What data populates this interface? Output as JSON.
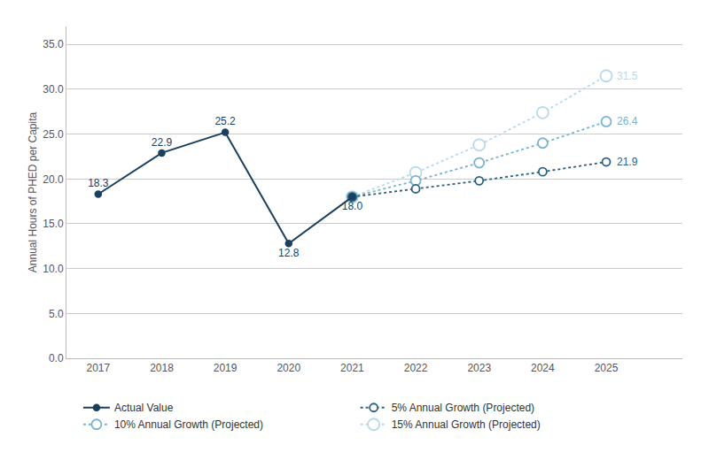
{
  "chart_data": {
    "type": "line",
    "ylabel": "Annual Hours of PHED per Capita",
    "xlim": [
      2016.5,
      2026.2
    ],
    "xticks": [
      2017,
      2018,
      2019,
      2020,
      2021,
      2022,
      2023,
      2024,
      2025
    ],
    "ylim": [
      0,
      37.0
    ],
    "yticks": [
      {
        "value": 0.0,
        "label": "0.0"
      },
      {
        "value": 5.0,
        "label": "5.0"
      },
      {
        "value": 10.0,
        "label": "10.0"
      },
      {
        "value": 15.0,
        "label": "15.0"
      },
      {
        "value": 20.0,
        "label": "20.0"
      },
      {
        "value": 25.0,
        "label": "25.0"
      },
      {
        "value": 30.0,
        "label": "30.0"
      },
      {
        "value": 35.0,
        "label": "35.0"
      }
    ],
    "grid": "y",
    "legend": "bottom",
    "series": [
      {
        "name": "Actual Value",
        "color": "#1b3f5e",
        "x": [
          2017,
          2018,
          2019,
          2020,
          2021
        ],
        "values": [
          18.3,
          22.9,
          25.2,
          12.8,
          18.0
        ],
        "line_style": "solid",
        "marker": "filled",
        "data_labels": true,
        "value_labels": [
          "18.3",
          "22.9",
          "25.2",
          "12.8",
          "18.0"
        ]
      },
      {
        "name": "5% Annual Growth (Projected)",
        "color": "#2b6080",
        "x": [
          2021,
          2022,
          2023,
          2024,
          2025
        ],
        "values": [
          18.0,
          18.9,
          19.8,
          20.8,
          21.9
        ],
        "line_style": "dotted",
        "marker": "open"
      },
      {
        "name": "10% Annual Growth (Projected)",
        "color": "#7ab3cc",
        "x": [
          2021,
          2022,
          2023,
          2024,
          2025
        ],
        "values": [
          18.0,
          19.8,
          21.8,
          24.0,
          26.4
        ],
        "line_style": "dotted",
        "marker": "open"
      },
      {
        "name": "15% Annual Growth (Projected)",
        "color": "#b8d9ea",
        "x": [
          2021,
          2022,
          2023,
          2024,
          2025
        ],
        "values": [
          18.0,
          20.7,
          23.8,
          27.4,
          31.5
        ],
        "line_style": "dotted",
        "marker": "open"
      }
    ],
    "annotations": [
      {
        "text": "21.9",
        "x": 2025,
        "y": 21.9,
        "color": "#2b6080"
      },
      {
        "text": "26.4",
        "x": 2025,
        "y": 26.4,
        "color": "#7ab3cc"
      },
      {
        "text": "31.5",
        "x": 2025,
        "y": 31.5,
        "color": "#b8d9ea"
      }
    ]
  }
}
